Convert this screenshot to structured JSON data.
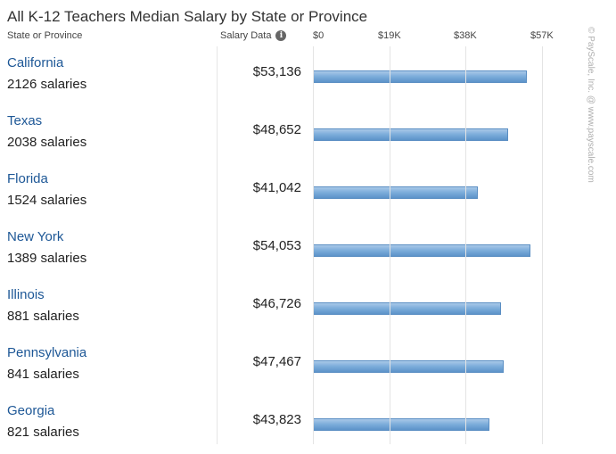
{
  "chart_data": {
    "type": "bar",
    "orientation": "horizontal",
    "title": "All K-12 Teachers Median Salary by State or Province",
    "column_headers": {
      "state": "State or Province",
      "salary": "Salary Data"
    },
    "x_ticks": [
      "$0",
      "$19K",
      "$38K",
      "$57K"
    ],
    "x_tick_values": [
      0,
      19000,
      38000,
      57000
    ],
    "xlim": [
      0,
      57000
    ],
    "grid": true,
    "bar_color": "#7eaedb",
    "categories": [
      "California",
      "Texas",
      "Florida",
      "New York",
      "Illinois",
      "Pennsylvania",
      "Georgia"
    ],
    "counts": [
      "2126 salaries",
      "2038 salaries",
      "1524 salaries",
      "1389 salaries",
      "881 salaries",
      "841 salaries",
      "821 salaries"
    ],
    "values": [
      53136,
      48652,
      41042,
      54053,
      46726,
      47467,
      43823
    ],
    "value_labels": [
      "$53,136",
      "$48,652",
      "$41,042",
      "$54,053",
      "$46,726",
      "$47,467",
      "$43,823"
    ]
  },
  "watermark": "© PayScale, Inc. @ www.payscale.com",
  "icons": {
    "salary_info": "info-icon"
  }
}
